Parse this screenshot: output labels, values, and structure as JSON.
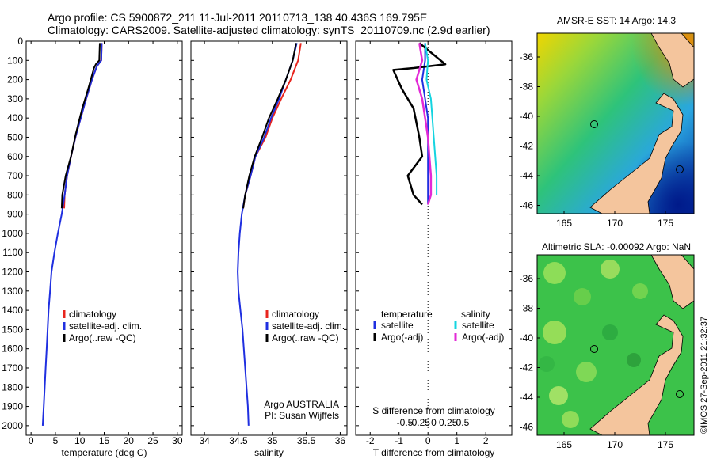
{
  "header": {
    "line1": "Argo profile: CS 5900872_211 11-Jul-2011 20110713_138 40.436S 169.795E",
    "line2": "Climatology: CARS2009. Satellite-adjusted climatology: synTS_20110709.nc (2.9d earlier)"
  },
  "credit": "©IMOS 27-Sep-2011 21:32:37",
  "colors": {
    "climatology": "#e8251e",
    "satellite": "#1f2fe0",
    "argo": "#000000",
    "sal_satellite": "#14d4e0",
    "sal_argo": "#e22ad6",
    "land": "#f4c59d"
  },
  "depth_axis": {
    "range": [
      0,
      2050
    ],
    "ticks": [
      0,
      100,
      200,
      300,
      400,
      500,
      600,
      700,
      800,
      900,
      1000,
      1100,
      1200,
      1300,
      1400,
      1500,
      1600,
      1700,
      1800,
      1900,
      2000
    ]
  },
  "chart_data": [
    {
      "type": "line",
      "xlabel": "temperature (deg C)",
      "xlim": [
        -1,
        31
      ],
      "xticks": [
        0,
        5,
        10,
        15,
        20,
        25,
        30
      ],
      "legend": [
        "climatology",
        "satellite-adj. clim.",
        "Argo(..raw -QC)"
      ],
      "series": [
        {
          "name": "climatology",
          "points": [
            [
              14.5,
              10
            ],
            [
              14.4,
              100
            ],
            [
              13.5,
              130
            ],
            [
              12.5,
              200
            ],
            [
              11.3,
              300
            ],
            [
              10.2,
              400
            ],
            [
              9.1,
              500
            ],
            [
              8.2,
              600
            ],
            [
              7.4,
              700
            ],
            [
              6.9,
              800
            ],
            [
              6.8,
              870
            ]
          ]
        },
        {
          "name": "satellite-adj. clim.",
          "points": [
            [
              14.5,
              10
            ],
            [
              14.4,
              100
            ],
            [
              13.5,
              130
            ],
            [
              12.5,
              200
            ],
            [
              11.3,
              300
            ],
            [
              10.2,
              400
            ],
            [
              9.1,
              500
            ],
            [
              8.2,
              600
            ],
            [
              7.4,
              700
            ],
            [
              6.9,
              800
            ],
            [
              6.3,
              900
            ],
            [
              5.5,
              1000
            ],
            [
              4.8,
              1100
            ],
            [
              4.2,
              1200
            ],
            [
              3.9,
              1300
            ],
            [
              3.6,
              1400
            ],
            [
              3.4,
              1500
            ],
            [
              3.2,
              1600
            ],
            [
              3.0,
              1700
            ],
            [
              2.8,
              1800
            ],
            [
              2.6,
              1900
            ],
            [
              2.4,
              2000
            ]
          ]
        },
        {
          "name": "Argo(..raw -QC)",
          "points": [
            [
              14.1,
              10
            ],
            [
              14.0,
              100
            ],
            [
              13.3,
              120
            ],
            [
              12.9,
              140
            ],
            [
              11.7,
              250
            ],
            [
              10.5,
              350
            ],
            [
              9.2,
              480
            ],
            [
              8.2,
              600
            ],
            [
              7.1,
              700
            ],
            [
              6.4,
              800
            ],
            [
              6.3,
              870
            ]
          ]
        }
      ]
    },
    {
      "type": "line",
      "xlabel": "salinity",
      "xlim": [
        33.8,
        36.1
      ],
      "xticks": [
        34,
        34.5,
        35,
        35.5,
        36
      ],
      "legend": [
        "climatology",
        "satellite-adj. clim.",
        "Argo(..raw -QC)"
      ],
      "annotation": [
        "Argo AUSTRALIA",
        "PI: Susan Wijffels"
      ],
      "series": [
        {
          "name": "climatology",
          "points": [
            [
              35.42,
              10
            ],
            [
              35.38,
              100
            ],
            [
              35.27,
              200
            ],
            [
              35.13,
              300
            ],
            [
              35.0,
              400
            ],
            [
              34.9,
              500
            ],
            [
              34.75,
              600
            ],
            [
              34.68,
              700
            ],
            [
              34.6,
              800
            ],
            [
              34.57,
              870
            ]
          ]
        },
        {
          "name": "satellite-adj. clim.",
          "points": [
            [
              35.36,
              10
            ],
            [
              35.3,
              100
            ],
            [
              35.2,
              200
            ],
            [
              35.1,
              300
            ],
            [
              34.98,
              400
            ],
            [
              34.88,
              500
            ],
            [
              34.75,
              600
            ],
            [
              34.68,
              700
            ],
            [
              34.6,
              800
            ],
            [
              34.55,
              900
            ],
            [
              34.52,
              1000
            ],
            [
              34.5,
              1100
            ],
            [
              34.49,
              1200
            ],
            [
              34.5,
              1300
            ],
            [
              34.53,
              1400
            ],
            [
              34.56,
              1500
            ],
            [
              34.58,
              1600
            ],
            [
              34.6,
              1700
            ],
            [
              34.62,
              1800
            ],
            [
              34.64,
              1900
            ],
            [
              34.65,
              2000
            ]
          ]
        },
        {
          "name": "Argo(..raw -QC)",
          "points": [
            [
              35.35,
              10
            ],
            [
              35.3,
              100
            ],
            [
              35.2,
              200
            ],
            [
              35.08,
              300
            ],
            [
              34.95,
              400
            ],
            [
              34.85,
              500
            ],
            [
              34.74,
              600
            ],
            [
              34.66,
              700
            ],
            [
              34.6,
              800
            ],
            [
              34.57,
              870
            ]
          ]
        }
      ]
    },
    {
      "type": "line",
      "xlabel": "T difference from climatology",
      "xlabel2": "S difference from climatology",
      "xlim": [
        -2.5,
        2.9
      ],
      "xticks": [
        -2,
        -1,
        0,
        1,
        2
      ],
      "xticks_s": [
        "-0.5",
        "-0.25",
        "0",
        "0.25",
        "0.5"
      ],
      "legend_headers": [
        "temperature",
        "salinity"
      ],
      "legend": [
        "satellite",
        "Argo(-adj)",
        "satellite",
        "Argo(-adj)"
      ],
      "series": [
        {
          "name": "T satellite",
          "points": [
            [
              -0.1,
              10
            ],
            [
              -0.1,
              100
            ],
            [
              -0.2,
              200
            ],
            [
              -0.1,
              300
            ],
            [
              0.0,
              400
            ],
            [
              0.0,
              500
            ],
            [
              0.0,
              600
            ],
            [
              0.0,
              700
            ],
            [
              0.0,
              800
            ],
            [
              0.0,
              850
            ]
          ]
        },
        {
          "name": "T Argo(-adj)",
          "points": [
            [
              -0.3,
              10
            ],
            [
              0.6,
              120
            ],
            [
              -0.5,
              140
            ],
            [
              -1.2,
              150
            ],
            [
              -0.9,
              250
            ],
            [
              -0.5,
              350
            ],
            [
              -0.3,
              500
            ],
            [
              -0.2,
              600
            ],
            [
              -0.7,
              700
            ],
            [
              -0.5,
              800
            ],
            [
              -0.2,
              850
            ]
          ]
        },
        {
          "name": "S satellite",
          "points": [
            [
              -0.1,
              10
            ],
            [
              0.0,
              100
            ],
            [
              -0.05,
              200
            ],
            [
              0.1,
              300
            ],
            [
              0.15,
              400
            ],
            [
              0.2,
              500
            ],
            [
              0.25,
              600
            ],
            [
              0.3,
              700
            ],
            [
              0.3,
              800
            ]
          ]
        },
        {
          "name": "S Argo(-adj)",
          "points": [
            [
              -0.3,
              10
            ],
            [
              -0.2,
              100
            ],
            [
              -0.4,
              200
            ],
            [
              -0.2,
              300
            ],
            [
              -0.1,
              400
            ],
            [
              0.0,
              500
            ],
            [
              0.05,
              600
            ],
            [
              0.1,
              700
            ],
            [
              0.1,
              800
            ],
            [
              0.0,
              850
            ]
          ]
        }
      ]
    }
  ],
  "maps": [
    {
      "title": "AMSR-E SST: 14 Argo: 14.3",
      "lon_ticks": [
        "165",
        "170",
        "175"
      ],
      "lat_ticks": [
        "-36",
        "-38",
        "-40",
        "-42",
        "-44",
        "-46"
      ]
    },
    {
      "title": "Altimetric SLA: -0.00092 Argo: NaN",
      "lon_ticks": [
        "165",
        "170",
        "175"
      ],
      "lat_ticks": [
        "-36",
        "-38",
        "-40",
        "-42",
        "-44",
        "-46"
      ]
    }
  ]
}
